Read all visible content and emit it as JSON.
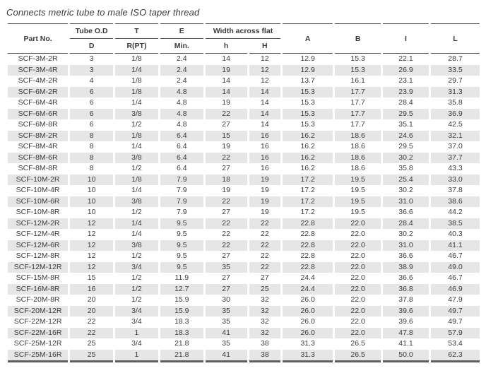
{
  "title": "Connects metric tube to male ISO taper thread",
  "table": {
    "header": {
      "part_no": "Part No.",
      "tube_od": "Tube O.D",
      "t": "T",
      "e": "E",
      "width_across_flat": "Width across flat",
      "d": "D",
      "r_pt": "R(PT)",
      "min": "Min.",
      "h_small": "h",
      "h_big": "H",
      "a": "A",
      "b": "B",
      "i": "I",
      "l": "L"
    },
    "rows": [
      [
        "SCF-3M-2R",
        "3",
        "1/8",
        "2.4",
        "14",
        "12",
        "12.9",
        "15.3",
        "22.1",
        "28.7"
      ],
      [
        "SCF-3M-4R",
        "3",
        "1/4",
        "2.4",
        "19",
        "12",
        "12.9",
        "15.3",
        "26.9",
        "33.5"
      ],
      [
        "SCF-4M-2R",
        "4",
        "1/8",
        "2.4",
        "14",
        "12",
        "13.7",
        "16.1",
        "23.1",
        "29.7"
      ],
      [
        "SCF-6M-2R",
        "6",
        "1/8",
        "4.8",
        "14",
        "14",
        "15.3",
        "17.7",
        "23.9",
        "31.3"
      ],
      [
        "SCF-6M-4R",
        "6",
        "1/4",
        "4.8",
        "19",
        "14",
        "15.3",
        "17.7",
        "28.4",
        "35.8"
      ],
      [
        "SCF-6M-6R",
        "6",
        "3/8",
        "4.8",
        "22",
        "14",
        "15.3",
        "17.7",
        "29.5",
        "36.9"
      ],
      [
        "SCF-6M-8R",
        "6",
        "1/2",
        "4.8",
        "27",
        "14",
        "15.3",
        "17.7",
        "35.1",
        "42.5"
      ],
      [
        "SCF-8M-2R",
        "8",
        "1/8",
        "6.4",
        "15",
        "16",
        "16.2",
        "18.6",
        "24.6",
        "32.1"
      ],
      [
        "SCF-8M-4R",
        "8",
        "1/4",
        "6.4",
        "19",
        "16",
        "16.2",
        "18.6",
        "29.5",
        "37.0"
      ],
      [
        "SCF-8M-6R",
        "8",
        "3/8",
        "6.4",
        "22",
        "16",
        "16.2",
        "18.6",
        "30.2",
        "37.7"
      ],
      [
        "SCF-8M-8R",
        "8",
        "1/2",
        "6.4",
        "27",
        "16",
        "16.2",
        "18.6",
        "35.8",
        "43.3"
      ],
      [
        "SCF-10M-2R",
        "10",
        "1/8",
        "7.9",
        "18",
        "19",
        "17.2",
        "19.5",
        "25.4",
        "33.0"
      ],
      [
        "SCF-10M-4R",
        "10",
        "1/4",
        "7.9",
        "19",
        "19",
        "17.2",
        "19.5",
        "30.2",
        "37.8"
      ],
      [
        "SCF-10M-6R",
        "10",
        "3/8",
        "7.9",
        "22",
        "19",
        "17.2",
        "19.5",
        "31.0",
        "38.6"
      ],
      [
        "SCF-10M-8R",
        "10",
        "1/2",
        "7.9",
        "27",
        "19",
        "17.2",
        "19.5",
        "36.6",
        "44.2"
      ],
      [
        "SCF-12M-2R",
        "12",
        "1/4",
        "9.5",
        "22",
        "22",
        "22.8",
        "22.0",
        "28.4",
        "38.5"
      ],
      [
        "SCF-12M-4R",
        "12",
        "1/4",
        "9.5",
        "22",
        "22",
        "22.8",
        "22.0",
        "30.2",
        "40.3"
      ],
      [
        "SCF-12M-6R",
        "12",
        "3/8",
        "9.5",
        "22",
        "22",
        "22.8",
        "22.0",
        "31.0",
        "41.1"
      ],
      [
        "SCF-12M-8R",
        "12",
        "1/2",
        "9.5",
        "27",
        "22",
        "22.8",
        "22.0",
        "36.6",
        "46.7"
      ],
      [
        "SCF-12M-12R",
        "12",
        "3/4",
        "9.5",
        "35",
        "22",
        "22.8",
        "22.0",
        "38.9",
        "49.0"
      ],
      [
        "SCF-15M-8R",
        "15",
        "1/2",
        "11.9",
        "27",
        "27",
        "24.4",
        "22.0",
        "36.6",
        "46.7"
      ],
      [
        "SCF-16M-8R",
        "16",
        "1/2",
        "12.7",
        "27",
        "25",
        "24.4",
        "22.0",
        "36.8",
        "46.9"
      ],
      [
        "SCF-20M-8R",
        "20",
        "1/2",
        "15.9",
        "30",
        "32",
        "26.0",
        "22.0",
        "37.8",
        "47.9"
      ],
      [
        "SCF-20M-12R",
        "20",
        "3/4",
        "15.9",
        "35",
        "32",
        "26.0",
        "22.0",
        "39.6",
        "49.7"
      ],
      [
        "SCF-22M-12R",
        "22",
        "3/4",
        "18.3",
        "35",
        "32",
        "26.0",
        "22.0",
        "39.6",
        "49.7"
      ],
      [
        "SCF-22M-16R",
        "22",
        "1",
        "18.3",
        "41",
        "32",
        "26.0",
        "22.0",
        "47.8",
        "57.9"
      ],
      [
        "SCF-25M-12R",
        "25",
        "3/4",
        "21.8",
        "35",
        "38",
        "31.3",
        "26.5",
        "41.1",
        "53.4"
      ],
      [
        "SCF-25M-16R",
        "25",
        "1",
        "21.8",
        "41",
        "38",
        "31.3",
        "26.5",
        "50.0",
        "62.3"
      ]
    ]
  },
  "colors": {
    "row_alt_background": "#e6e6e6",
    "rule": "#565656",
    "text": "#3b3b3b"
  }
}
